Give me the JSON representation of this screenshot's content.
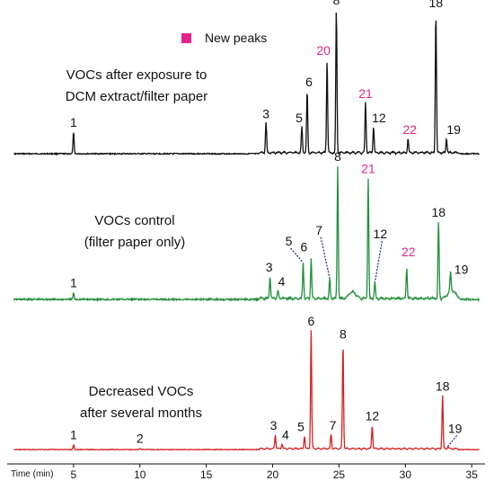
{
  "legend": {
    "label": "New peaks",
    "swatch_color": "#e6238c"
  },
  "colors": {
    "black_trace": "#111111",
    "green_trace": "#1f8f3a",
    "red_trace": "#d32222",
    "new_peak_label": "#e6238c",
    "label": "#111111"
  },
  "chart_data": {
    "type": "line",
    "xlabel": "Time (min)",
    "xlim": [
      0,
      36
    ],
    "xticks": [
      5,
      10,
      15,
      20,
      25,
      30,
      35
    ],
    "ylim": [
      0,
      1
    ],
    "series": [
      {
        "name": "VOCs after exposure to DCM extract/filter paper",
        "annotation_lines": [
          "VOCs after exposure to",
          "DCM extract/filter paper"
        ],
        "color": "#111111",
        "peaks": [
          {
            "label": "1",
            "x": 5.0,
            "height": 0.15,
            "new": false
          },
          {
            "label": "3",
            "x": 19.5,
            "height": 0.21,
            "new": false
          },
          {
            "label": "5",
            "x": 22.2,
            "height": 0.18,
            "new": false
          },
          {
            "label": "6",
            "x": 22.6,
            "height": 0.43,
            "new": false
          },
          {
            "label": "20",
            "x": 24.1,
            "height": 0.65,
            "new": true
          },
          {
            "label": "8",
            "x": 24.8,
            "height": 1.0,
            "new": false
          },
          {
            "label": "21",
            "x": 27.0,
            "height": 0.35,
            "new": true
          },
          {
            "label": "12",
            "x": 27.6,
            "height": 0.18,
            "new": false
          },
          {
            "label": "22",
            "x": 30.2,
            "height": 0.1,
            "new": true
          },
          {
            "label": "18",
            "x": 32.3,
            "height": 0.98,
            "new": false
          },
          {
            "label": "19",
            "x": 33.1,
            "height": 0.1,
            "new": false
          }
        ]
      },
      {
        "name": "VOCs control (filter paper only)",
        "annotation_lines": [
          "VOCs control",
          "(filter paper only)"
        ],
        "color": "#1f8f3a",
        "peaks": [
          {
            "label": "1",
            "x": 5.0,
            "height": 0.05,
            "new": false
          },
          {
            "label": "3",
            "x": 19.8,
            "height": 0.17,
            "new": false
          },
          {
            "label": "4",
            "x": 20.4,
            "height": 0.06,
            "new": false
          },
          {
            "label": "5",
            "x": 22.3,
            "height": 0.27,
            "new": false
          },
          {
            "label": "6",
            "x": 22.9,
            "height": 0.3,
            "new": false
          },
          {
            "label": "7",
            "x": 24.3,
            "height": 0.15,
            "new": false
          },
          {
            "label": "8",
            "x": 24.9,
            "height": 1.0,
            "new": false
          },
          {
            "label": "21",
            "x": 27.2,
            "height": 0.91,
            "new": true
          },
          {
            "label": "12",
            "x": 27.7,
            "height": 0.12,
            "new": false
          },
          {
            "label": "22",
            "x": 30.1,
            "height": 0.23,
            "new": true
          },
          {
            "label": "18",
            "x": 32.5,
            "height": 0.58,
            "new": false
          },
          {
            "label": "19",
            "x": 33.4,
            "height": 0.14,
            "new": false
          }
        ]
      },
      {
        "name": "Decreased VOCs after several months",
        "annotation_lines": [
          "Decreased VOCs",
          "after several months"
        ],
        "color": "#d32222",
        "peaks": [
          {
            "label": "1",
            "x": 5.0,
            "height": 0.04,
            "new": false
          },
          {
            "label": "2",
            "x": 10.0,
            "height": 0.01,
            "new": false
          },
          {
            "label": "3",
            "x": 20.2,
            "height": 0.12,
            "new": false
          },
          {
            "label": "4",
            "x": 20.7,
            "height": 0.04,
            "new": false
          },
          {
            "label": "5",
            "x": 22.4,
            "height": 0.11,
            "new": false
          },
          {
            "label": "6",
            "x": 22.9,
            "height": 1.0,
            "new": false
          },
          {
            "label": "7",
            "x": 24.4,
            "height": 0.12,
            "new": false
          },
          {
            "label": "8",
            "x": 25.3,
            "height": 0.89,
            "new": false
          },
          {
            "label": "12",
            "x": 27.5,
            "height": 0.2,
            "new": false
          },
          {
            "label": "18",
            "x": 32.8,
            "height": 0.45,
            "new": false
          },
          {
            "label": "19",
            "x": 33.2,
            "height": 0.02,
            "new": false
          }
        ]
      }
    ]
  }
}
